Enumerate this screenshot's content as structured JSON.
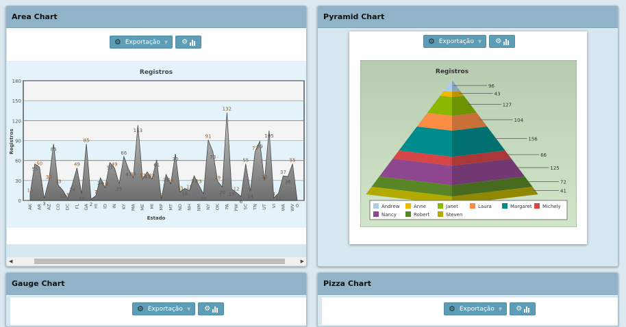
{
  "panels": {
    "area": {
      "title": "Area Chart"
    },
    "pyramid": {
      "title": "Pyramid Chart"
    },
    "gauge": {
      "title": "Gauge Chart"
    },
    "pizza": {
      "title": "Pizza Chart"
    }
  },
  "toolbar": {
    "export_label": "Exportação",
    "gear_icon": "gear-icon",
    "chart_icon": "bar-chart-icon"
  },
  "chart_data": [
    {
      "type": "area",
      "title": "Registros",
      "xlabel": "Estado",
      "ylabel": "Registros",
      "ylim": [
        0,
        180
      ],
      "yticks": [
        "0",
        "30",
        "60",
        "90",
        "120",
        "150",
        "180"
      ],
      "categories": [
        "AK",
        "AL",
        "AR",
        "AS",
        "AZ",
        "CA",
        "CO",
        "CT",
        "DC",
        "DE",
        "FL",
        "FM",
        "GA",
        "GU",
        "HI",
        "IA",
        "ID",
        "IL",
        "IN",
        "KS",
        "KY",
        "LA",
        "MA",
        "MD",
        "ME",
        "MH",
        "MI",
        "MN",
        "MP",
        "MS",
        "MT",
        "NC",
        "ND",
        "NE",
        "NH",
        "NJ",
        "NM",
        "NV",
        "NY",
        "OH",
        "OK",
        "OR",
        "PA",
        "PR",
        "PW",
        "RI",
        "SC",
        "SD",
        "TN",
        "TX",
        "UT",
        "VA",
        "VI",
        "VT",
        "WA",
        "WI",
        "WV",
        "WY"
      ],
      "values": [
        10,
        55,
        50,
        3,
        30,
        85,
        23,
        15,
        3,
        24,
        49,
        10,
        85,
        2,
        7,
        34,
        19,
        57,
        49,
        25,
        66,
        47,
        34,
        113,
        32,
        43,
        32,
        61,
        2,
        39,
        25,
        70,
        13,
        18,
        15,
        37,
        23,
        10,
        91,
        73,
        29,
        20,
        132,
        17,
        12,
        6,
        55,
        14,
        73,
        89,
        30,
        105,
        4,
        11,
        37,
        36,
        55,
        0
      ],
      "color": "#8a8a8a"
    },
    {
      "type": "pyramid",
      "title": "Registros",
      "categories": [
        "Andrew",
        "Anne",
        "Janet",
        "Laura",
        "Margaret",
        "Michely",
        "Nancy",
        "Robert",
        "Steven"
      ],
      "values": [
        96,
        43,
        127,
        104,
        156,
        66,
        125,
        72,
        41
      ],
      "colors": [
        "#a9cdea",
        "#f2b800",
        "#8ab800",
        "#fb8c45",
        "#008c8c",
        "#d64646",
        "#8e468e",
        "#588526",
        "#b3aa00"
      ]
    }
  ]
}
